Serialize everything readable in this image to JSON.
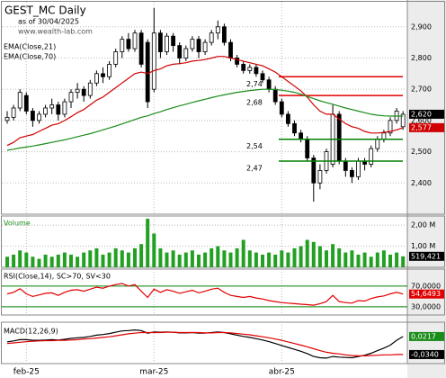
{
  "chart_data": [
    {
      "type": "candlestick",
      "title": "GEST_MC Daily",
      "subtitle": "as of 30/04/2025",
      "source": "www.wealth-lab.com",
      "categories": [
        null,
        null,
        null,
        "feb-25",
        null,
        null,
        null,
        null,
        null,
        null,
        null,
        null,
        null,
        null,
        null,
        null,
        null,
        null,
        null,
        null,
        null,
        null,
        null,
        "mar-25",
        null,
        null,
        null,
        null,
        null,
        null,
        null,
        null,
        null,
        null,
        null,
        null,
        null,
        null,
        null,
        null,
        null,
        null,
        null,
        "abr-25",
        null,
        null,
        null,
        null,
        null,
        null,
        null,
        null,
        null,
        null,
        null,
        null,
        null,
        null,
        null,
        null,
        null,
        null,
        null
      ],
      "open": [
        2.6,
        2.61,
        2.64,
        2.68,
        2.63,
        2.6,
        2.62,
        2.64,
        2.65,
        2.62,
        2.66,
        2.69,
        2.7,
        2.68,
        2.72,
        2.75,
        2.74,
        2.78,
        2.82,
        2.86,
        2.83,
        2.88,
        2.85,
        2.7,
        2.88,
        2.82,
        2.87,
        2.84,
        2.8,
        2.83,
        2.86,
        2.82,
        2.85,
        2.88,
        2.9,
        2.85,
        2.8,
        2.78,
        2.76,
        2.77,
        2.75,
        2.73,
        2.7,
        2.66,
        2.62,
        2.59,
        2.56,
        2.54,
        2.48,
        2.4,
        2.44,
        2.46,
        2.62,
        2.47,
        2.44,
        2.42,
        2.47,
        2.46,
        2.51,
        2.54,
        2.56,
        2.6,
        2.58
      ],
      "high": [
        2.63,
        2.65,
        2.7,
        2.69,
        2.64,
        2.63,
        2.65,
        2.67,
        2.66,
        2.67,
        2.7,
        2.72,
        2.71,
        2.73,
        2.76,
        2.77,
        2.79,
        2.83,
        2.87,
        2.88,
        2.89,
        2.89,
        2.86,
        2.96,
        2.89,
        2.88,
        2.88,
        2.85,
        2.84,
        2.87,
        2.87,
        2.86,
        2.89,
        2.92,
        2.91,
        2.86,
        2.81,
        2.79,
        2.78,
        2.78,
        2.76,
        2.74,
        2.71,
        2.67,
        2.63,
        2.6,
        2.57,
        2.55,
        2.49,
        2.46,
        2.51,
        2.65,
        2.63,
        2.48,
        2.45,
        2.48,
        2.48,
        2.52,
        2.55,
        2.57,
        2.61,
        2.64,
        2.63
      ],
      "low": [
        2.59,
        2.6,
        2.63,
        2.62,
        2.58,
        2.59,
        2.61,
        2.62,
        2.6,
        2.61,
        2.64,
        2.67,
        2.66,
        2.67,
        2.71,
        2.72,
        2.73,
        2.77,
        2.8,
        2.82,
        2.82,
        2.77,
        2.64,
        2.69,
        2.8,
        2.81,
        2.82,
        2.78,
        2.79,
        2.82,
        2.8,
        2.81,
        2.84,
        2.86,
        2.84,
        2.79,
        2.77,
        2.75,
        2.75,
        2.74,
        2.72,
        2.69,
        2.65,
        2.61,
        2.58,
        2.55,
        2.53,
        2.47,
        2.34,
        2.38,
        2.43,
        2.45,
        2.46,
        2.42,
        2.4,
        2.41,
        2.44,
        2.45,
        2.5,
        2.53,
        2.55,
        2.59,
        2.57
      ],
      "close": [
        2.61,
        2.64,
        2.69,
        2.63,
        2.6,
        2.62,
        2.64,
        2.65,
        2.62,
        2.66,
        2.69,
        2.7,
        2.68,
        2.72,
        2.75,
        2.74,
        2.78,
        2.82,
        2.86,
        2.83,
        2.88,
        2.78,
        2.66,
        2.88,
        2.82,
        2.87,
        2.84,
        2.8,
        2.83,
        2.86,
        2.82,
        2.85,
        2.88,
        2.9,
        2.85,
        2.8,
        2.78,
        2.76,
        2.77,
        2.75,
        2.73,
        2.7,
        2.66,
        2.62,
        2.59,
        2.56,
        2.54,
        2.48,
        2.4,
        2.44,
        2.5,
        2.62,
        2.47,
        2.44,
        2.42,
        2.47,
        2.46,
        2.51,
        2.54,
        2.56,
        2.6,
        2.63,
        2.62
      ],
      "up_color": "#ffffff",
      "down_color": "#000000",
      "last_label": "2,620",
      "label_color": "#000000",
      "ylim": [
        2.3,
        2.98
      ],
      "yticks": [
        {
          "value": 2.4,
          "label": "2,400"
        },
        {
          "value": 2.5,
          "label": "2,500"
        },
        {
          "value": 2.6,
          "label": "2,600"
        },
        {
          "value": 2.7,
          "label": "2,700"
        },
        {
          "value": 2.8,
          "label": "2,800"
        },
        {
          "value": 2.9,
          "label": "2,900"
        }
      ],
      "grid": true,
      "series": [
        {
          "name": "EMA(Close,21)",
          "color": "#d00000",
          "last_label": "2,577",
          "values": [
            2.52,
            2.53,
            2.545,
            2.55,
            2.555,
            2.565,
            2.575,
            2.585,
            2.59,
            2.6,
            2.612,
            2.625,
            2.635,
            2.65,
            2.665,
            2.675,
            2.69,
            2.705,
            2.72,
            2.735,
            2.75,
            2.755,
            2.75,
            2.76,
            2.765,
            2.775,
            2.78,
            2.782,
            2.785,
            2.79,
            2.792,
            2.795,
            2.8,
            2.805,
            2.805,
            2.8,
            2.795,
            2.79,
            2.785,
            2.78,
            2.775,
            2.765,
            2.755,
            2.74,
            2.725,
            2.71,
            2.695,
            2.675,
            2.65,
            2.63,
            2.62,
            2.62,
            2.605,
            2.59,
            2.58,
            2.575,
            2.565,
            2.56,
            2.56,
            2.562,
            2.565,
            2.57,
            2.577
          ]
        },
        {
          "name": "EMA(Close,70)",
          "color": "#1a8c1a",
          "values": [
            2.505,
            2.508,
            2.512,
            2.515,
            2.518,
            2.522,
            2.526,
            2.53,
            2.534,
            2.538,
            2.543,
            2.548,
            2.553,
            2.558,
            2.564,
            2.57,
            2.576,
            2.582,
            2.589,
            2.596,
            2.603,
            2.61,
            2.615,
            2.622,
            2.628,
            2.635,
            2.641,
            2.647,
            2.652,
            2.658,
            2.663,
            2.668,
            2.673,
            2.678,
            2.682,
            2.686,
            2.69,
            2.693,
            2.696,
            2.698,
            2.7,
            2.7,
            2.699,
            2.697,
            2.694,
            2.69,
            2.684,
            2.677,
            2.67,
            2.663,
            2.657,
            2.652,
            2.646,
            2.64,
            2.635,
            2.63,
            2.625,
            2.62,
            2.617,
            2.615,
            2.614,
            2.614,
            2.614
          ]
        }
      ],
      "levels": [
        {
          "value": 2.74,
          "label": "2,74",
          "color": "#e00000"
        },
        {
          "value": 2.68,
          "label": "2,68",
          "color": "#e00000"
        },
        {
          "value": 2.54,
          "label": "2,54",
          "color": "#008000"
        },
        {
          "value": 2.47,
          "label": "2,47",
          "color": "#008000"
        }
      ]
    },
    {
      "type": "bar",
      "title": "Volume",
      "color": "#22a022",
      "last_label": "519,421",
      "label_color": "#000000",
      "values": [
        0.5,
        0.6,
        0.8,
        0.7,
        0.5,
        0.4,
        0.6,
        0.5,
        0.6,
        0.7,
        0.6,
        0.5,
        0.7,
        0.8,
        0.9,
        0.6,
        0.7,
        0.9,
        0.8,
        0.7,
        0.9,
        1.1,
        2.3,
        1.6,
        0.9,
        0.7,
        0.8,
        0.6,
        0.7,
        0.8,
        0.6,
        0.7,
        0.9,
        1.0,
        0.8,
        0.7,
        0.9,
        1.3,
        0.8,
        0.7,
        0.6,
        0.7,
        0.6,
        0.8,
        0.7,
        0.9,
        1.0,
        1.3,
        1.2,
        1.0,
        0.8,
        1.1,
        0.9,
        0.7,
        0.8,
        0.6,
        0.7,
        0.5,
        0.7,
        0.8,
        0.6,
        0.7,
        0.519421
      ],
      "ylim": [
        0,
        2.43
      ],
      "yticks": [
        {
          "value": 1,
          "label": "1,00 M"
        },
        {
          "value": 2,
          "label": "2,00 M"
        }
      ],
      "grid": true
    },
    {
      "type": "line",
      "title": "RSI(Close,14), SC>70, SV<30",
      "series": [
        {
          "color": "#e00000",
          "last_label": "54,6493",
          "values": [
            55,
            58,
            65,
            55,
            50,
            53,
            56,
            57,
            52,
            58,
            62,
            63,
            60,
            64,
            68,
            66,
            70,
            73,
            75,
            70,
            73,
            60,
            48,
            64,
            58,
            63,
            60,
            56,
            59,
            62,
            57,
            60,
            64,
            66,
            58,
            52,
            50,
            48,
            50,
            47,
            45,
            42,
            40,
            38,
            37,
            36,
            35,
            34,
            33,
            36,
            40,
            52,
            40,
            38,
            37,
            42,
            41,
            46,
            49,
            51,
            55,
            58,
            54.6493
          ]
        }
      ],
      "ylim": [
        14,
        103
      ],
      "yticks": [
        {
          "value": 30,
          "label": "30,0000"
        },
        {
          "value": 70,
          "label": "70,0000"
        }
      ],
      "grid": true,
      "grid_color": "#008000"
    },
    {
      "type": "line",
      "title": "MACD(12,26,9)",
      "series": [
        {
          "color": "#000000",
          "label_color": "#1a8c1a",
          "last_label": "0,0217",
          "values": [
            0.005,
            0.008,
            0.012,
            0.012,
            0.01,
            0.01,
            0.011,
            0.012,
            0.011,
            0.013,
            0.016,
            0.018,
            0.019,
            0.022,
            0.026,
            0.028,
            0.031,
            0.035,
            0.039,
            0.04,
            0.042,
            0.04,
            0.032,
            0.036,
            0.035,
            0.036,
            0.035,
            0.033,
            0.033,
            0.034,
            0.032,
            0.032,
            0.034,
            0.036,
            0.034,
            0.03,
            0.026,
            0.022,
            0.019,
            0.015,
            0.011,
            0.006,
            0.0,
            -0.006,
            -0.012,
            -0.018,
            -0.024,
            -0.031,
            -0.04,
            -0.044,
            -0.045,
            -0.04,
            -0.042,
            -0.043,
            -0.044,
            -0.04,
            -0.036,
            -0.03,
            -0.022,
            -0.014,
            -0.005,
            0.01,
            0.0217
          ]
        },
        {
          "color": "#e00000",
          "label_color": "#000000",
          "last_label": "-0,0340",
          "values": [
            0.0,
            0.002,
            0.004,
            0.006,
            0.007,
            0.008,
            0.009,
            0.009,
            0.01,
            0.01,
            0.011,
            0.012,
            0.014,
            0.015,
            0.017,
            0.019,
            0.021,
            0.024,
            0.027,
            0.03,
            0.032,
            0.034,
            0.034,
            0.034,
            0.034,
            0.035,
            0.035,
            0.034,
            0.034,
            0.034,
            0.034,
            0.033,
            0.033,
            0.034,
            0.034,
            0.033,
            0.031,
            0.029,
            0.027,
            0.024,
            0.021,
            0.018,
            0.014,
            0.01,
            0.005,
            0.0,
            -0.005,
            -0.01,
            -0.016,
            -0.022,
            -0.027,
            -0.03,
            -0.032,
            -0.035,
            -0.037,
            -0.038,
            -0.038,
            -0.037,
            -0.036,
            -0.035,
            -0.035,
            -0.034,
            -0.034
          ]
        }
      ],
      "ylim": [
        -0.062,
        0.066
      ]
    }
  ]
}
